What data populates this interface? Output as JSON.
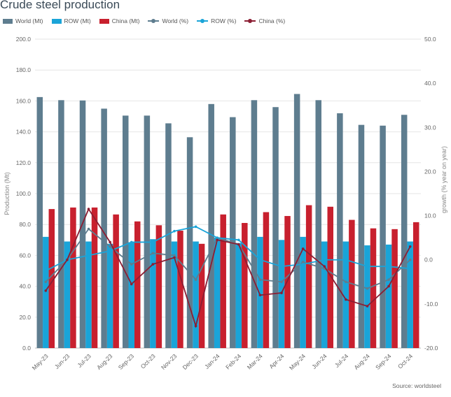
{
  "page": {
    "title": "Crude steel production",
    "source": "Source: worldsteel"
  },
  "legend": [
    {
      "label": "World (Mt)",
      "type": "bar",
      "color": "#5e7d8f"
    },
    {
      "label": "ROW (Mt)",
      "type": "bar",
      "color": "#1aa4d8"
    },
    {
      "label": "China (Mt)",
      "type": "bar",
      "color": "#c8202e"
    },
    {
      "label": "World (%)",
      "type": "line",
      "color": "#5e7d8f"
    },
    {
      "label": "ROW (%)",
      "type": "line",
      "color": "#1aa4d8"
    },
    {
      "label": "China (%)",
      "type": "line",
      "color": "#8b1e33"
    }
  ],
  "chart_data": {
    "type": "bar",
    "title": "Crude steel production",
    "ylabel": "Production (Mt)",
    "y2label": "growth (% year on year)",
    "ylim": [
      0,
      200
    ],
    "y2lim": [
      -20,
      50
    ],
    "yticks": [
      "0.0",
      "20.0",
      "40.0",
      "60.0",
      "80.0",
      "100.0",
      "120.0",
      "140.0",
      "160.0",
      "180.0",
      "200.0"
    ],
    "y2ticks": [
      "-20.0",
      "-10.0",
      "0.0",
      "10.0",
      "20.0",
      "30.0",
      "40.0",
      "50.0"
    ],
    "grid": true,
    "legend_position": "top",
    "categories": [
      "May-23",
      "Jun-23",
      "Jul-23",
      "Aug-23",
      "Sep-23",
      "Oct-23",
      "Nov-23",
      "Dec-23",
      "Jan-24",
      "Feb-24",
      "Mar-24",
      "Apr-24",
      "May-24",
      "Jun-24",
      "Jul-24",
      "Aug-24",
      "Sep-24",
      "Oct-24"
    ],
    "bar_series": [
      {
        "name": "World (Mt)",
        "color": "#5e7d8f",
        "values": [
          162.5,
          160.5,
          160.3,
          155.0,
          150.5,
          150.5,
          145.5,
          136.5,
          158.0,
          149.5,
          160.5,
          156.0,
          164.5,
          160.5,
          152.0,
          144.5,
          144.0,
          151.0
        ]
      },
      {
        "name": "ROW (Mt)",
        "color": "#1aa4d8",
        "values": [
          72.0,
          69.0,
          69.0,
          67.5,
          68.5,
          70.5,
          69.0,
          69.0,
          71.5,
          68.0,
          72.0,
          70.0,
          72.0,
          69.0,
          69.0,
          66.5,
          67.0,
          69.0
        ]
      },
      {
        "name": "China (Mt)",
        "color": "#c8202e",
        "values": [
          90.0,
          91.0,
          91.0,
          86.5,
          82.0,
          79.5,
          76.0,
          67.5,
          86.5,
          81.0,
          88.0,
          85.5,
          92.5,
          91.5,
          83.0,
          77.5,
          77.0,
          81.5
        ]
      }
    ],
    "line_series": [
      {
        "name": "World (%)",
        "color": "#5e7d8f",
        "values": [
          -5.0,
          0.0,
          7.0,
          3.0,
          -1.0,
          1.5,
          1.0,
          -4.5,
          5.0,
          3.5,
          -4.5,
          -5.0,
          -0.5,
          -2.0,
          -5.0,
          -6.5,
          -4.5,
          0.0
        ]
      },
      {
        "name": "ROW (%)",
        "color": "#1aa4d8",
        "values": [
          -2.5,
          0.0,
          1.0,
          2.0,
          4.0,
          4.0,
          6.5,
          7.5,
          5.0,
          4.5,
          0.0,
          -1.5,
          -1.0,
          0.0,
          0.0,
          -1.5,
          -1.5,
          -2.0
        ]
      },
      {
        "name": "China (%)",
        "color": "#8b1e33",
        "values": [
          -7.0,
          0.0,
          11.5,
          4.0,
          -5.5,
          -1.0,
          0.5,
          -15.0,
          4.5,
          3.5,
          -8.0,
          -7.5,
          2.5,
          -1.5,
          -9.0,
          -10.5,
          -6.0,
          3.0
        ]
      }
    ]
  }
}
